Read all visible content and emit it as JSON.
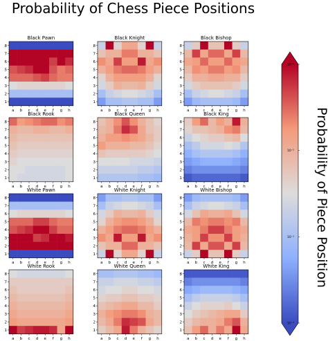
{
  "title": "Probability of Chess Piece Positions",
  "colorbar": {
    "label": "Probability of Piece Position",
    "scale": "log",
    "colormap": "coolwarm",
    "range": [
      0.0001,
      0.1
    ],
    "tick_labels": [
      "10⁻¹",
      "10⁻²",
      "10⁻³",
      "10⁻⁴"
    ],
    "extend": "both"
  },
  "chart_data": {
    "type": "heatmap",
    "x_tick_labels": [
      "a",
      "b",
      "c",
      "d",
      "e",
      "f",
      "g",
      "h"
    ],
    "y_tick_labels": [
      "8",
      "7",
      "6",
      "5",
      "4",
      "3",
      "2",
      "1"
    ],
    "value_scale": "log10 of probability, range -4 to -1",
    "panels": [
      {
        "title": "Black Pawn",
        "grid": [
          [
            -4,
            -4,
            -4,
            -4,
            -4,
            -4,
            -4,
            -4
          ],
          [
            -1,
            -1,
            -1,
            -1,
            -1,
            -1,
            -1,
            -1
          ],
          [
            -1,
            -1,
            -1,
            -1,
            -1,
            -1.3,
            -1,
            -1.2
          ],
          [
            -1.4,
            -1.3,
            -1.2,
            -1,
            -1,
            -1.4,
            -1.6,
            -1.5
          ],
          [
            -1.5,
            -1.5,
            -1.5,
            -1.4,
            -1.3,
            -1.5,
            -1.6,
            -1.6
          ],
          [
            -2.5,
            -2.4,
            -2.4,
            -2.4,
            -2.4,
            -2.4,
            -2.4,
            -2.5
          ],
          [
            -3,
            -3,
            -3,
            -3,
            -3,
            -3,
            -3,
            -3
          ],
          [
            -4,
            -4,
            -4,
            -4,
            -4,
            -4,
            -4,
            -4
          ]
        ]
      },
      {
        "title": "Black Knight",
        "grid": [
          [
            -2.7,
            -1,
            -2.4,
            -1.9,
            -1.9,
            -2.4,
            -1,
            -2.7
          ],
          [
            -2.2,
            -2,
            -2,
            -1.6,
            -1.6,
            -2,
            -2,
            -2.2
          ],
          [
            -1.7,
            -1.9,
            -1.3,
            -1.8,
            -1.8,
            -1.1,
            -1.9,
            -1.7
          ],
          [
            -2,
            -1.8,
            -1.6,
            -1.5,
            -1.5,
            -1.6,
            -1.8,
            -2
          ],
          [
            -2.4,
            -2,
            -1.8,
            -1.8,
            -1.8,
            -1.8,
            -2,
            -2.4
          ],
          [
            -2.6,
            -2.3,
            -2,
            -2.1,
            -2.1,
            -2,
            -2.3,
            -2.6
          ],
          [
            -3,
            -2.7,
            -2.6,
            -2.5,
            -2.5,
            -2.6,
            -2.7,
            -3
          ],
          [
            -3.4,
            -3,
            -3,
            -2.9,
            -2.9,
            -3,
            -3,
            -3.4
          ]
        ]
      },
      {
        "title": "Black Bishop",
        "grid": [
          [
            -2.7,
            -2.3,
            -1,
            -2.2,
            -2.2,
            -1,
            -2.3,
            -2.7
          ],
          [
            -2.1,
            -1.3,
            -1.9,
            -1.5,
            -1.5,
            -1.9,
            -1.3,
            -2.1
          ],
          [
            -1.9,
            -1.8,
            -1.5,
            -1.8,
            -1.8,
            -1.5,
            -1.8,
            -1.9
          ],
          [
            -2.1,
            -1.7,
            -1.8,
            -1.6,
            -1.6,
            -1.8,
            -1.7,
            -2.1
          ],
          [
            -2.3,
            -2,
            -2,
            -1.9,
            -1.9,
            -2,
            -2,
            -2.3
          ],
          [
            -2.6,
            -2.3,
            -2.2,
            -2.2,
            -2.2,
            -2.2,
            -2.3,
            -2.6
          ],
          [
            -3,
            -2.7,
            -2.6,
            -2.5,
            -2.5,
            -2.6,
            -2.7,
            -3
          ],
          [
            -3.4,
            -3.1,
            -3,
            -3,
            -3,
            -3,
            -3.1,
            -3.4
          ]
        ]
      },
      {
        "title": "Black Rook",
        "grid": [
          [
            -1.5,
            -1.8,
            -1.7,
            -1.6,
            -1.5,
            -1.5,
            -1.7,
            -1.6
          ],
          [
            -2,
            -2.1,
            -2.1,
            -2,
            -2,
            -2.1,
            -2.1,
            -2
          ],
          [
            -2.1,
            -2.2,
            -2.2,
            -2.2,
            -2.2,
            -2.2,
            -2.2,
            -2.2
          ],
          [
            -2.2,
            -2.3,
            -2.3,
            -2.3,
            -2.3,
            -2.3,
            -2.3,
            -2.3
          ],
          [
            -2.3,
            -2.4,
            -2.4,
            -2.4,
            -2.4,
            -2.4,
            -2.4,
            -2.4
          ],
          [
            -2.4,
            -2.5,
            -2.5,
            -2.5,
            -2.5,
            -2.5,
            -2.5,
            -2.5
          ],
          [
            -2.5,
            -2.5,
            -2.6,
            -2.6,
            -2.6,
            -2.6,
            -2.6,
            -2.5
          ],
          [
            -2.5,
            -2.6,
            -2.6,
            -2.6,
            -2.6,
            -2.6,
            -2.6,
            -2.5
          ]
        ]
      },
      {
        "title": "Black Queen",
        "grid": [
          [
            -2.2,
            -2,
            -1.7,
            -1.4,
            -1.7,
            -2,
            -2.2,
            -2.4
          ],
          [
            -2.1,
            -2,
            -1.6,
            -1.2,
            -1.4,
            -1.9,
            -2.2,
            -2.3
          ],
          [
            -2,
            -1.8,
            -1.8,
            -1.7,
            -1.8,
            -1.9,
            -2.1,
            -2.3
          ],
          [
            -1.8,
            -2,
            -2,
            -2,
            -2.1,
            -2.1,
            -2.2,
            -2.4
          ],
          [
            -2.2,
            -2.3,
            -2.3,
            -2.3,
            -2.3,
            -2.3,
            -2.4,
            -2.5
          ],
          [
            -2.5,
            -2.5,
            -2.5,
            -2.5,
            -2.6,
            -2.6,
            -2.6,
            -2.7
          ],
          [
            -2.7,
            -2.7,
            -2.7,
            -2.7,
            -2.7,
            -2.8,
            -2.8,
            -2.9
          ],
          [
            -2.9,
            -2.9,
            -2.9,
            -2.9,
            -2.9,
            -3,
            -3,
            -3.1
          ]
        ]
      },
      {
        "title": "Black King",
        "grid": [
          [
            -2.3,
            -1.8,
            -1.5,
            -2.1,
            -1.8,
            -2,
            -1.1,
            -2
          ],
          [
            -2.4,
            -2.2,
            -2.2,
            -2.1,
            -2,
            -1.7,
            -1.6,
            -2.1
          ],
          [
            -2.7,
            -2.5,
            -2.4,
            -2.3,
            -2.3,
            -2.2,
            -2.1,
            -2.5
          ],
          [
            -3,
            -2.8,
            -2.6,
            -2.6,
            -2.6,
            -2.5,
            -2.6,
            -2.9
          ],
          [
            -3.2,
            -3,
            -2.9,
            -2.9,
            -2.9,
            -2.9,
            -3,
            -3.2
          ],
          [
            -3.4,
            -3.3,
            -3.2,
            -3.2,
            -3.2,
            -3.2,
            -3.3,
            -3.4
          ],
          [
            -3.6,
            -3.5,
            -3.5,
            -3.5,
            -3.5,
            -3.5,
            -3.5,
            -3.6
          ],
          [
            -3.9,
            -3.8,
            -3.8,
            -3.8,
            -3.8,
            -3.8,
            -3.8,
            -3.9
          ]
        ]
      },
      {
        "title": "White Pawn",
        "grid": [
          [
            -4,
            -4,
            -4,
            -4,
            -4,
            -4,
            -4,
            -4
          ],
          [
            -3,
            -3,
            -3,
            -3,
            -3,
            -3,
            -3,
            -3
          ],
          [
            -2.5,
            -2.4,
            -2.4,
            -2.4,
            -2.4,
            -2.4,
            -2.4,
            -2.5
          ],
          [
            -1.5,
            -1.5,
            -1.5,
            -1.3,
            -1.3,
            -1.5,
            -1.6,
            -1.6
          ],
          [
            -1.4,
            -1.3,
            -1.2,
            -1,
            -1,
            -1.3,
            -1.5,
            -1.5
          ],
          [
            -1,
            -1,
            -1,
            -1.3,
            -1.2,
            -1,
            -1,
            -1.1
          ],
          [
            -1,
            -1,
            -1,
            -1,
            -1,
            -1,
            -1,
            -1
          ],
          [
            -4,
            -4,
            -4,
            -4,
            -4,
            -4,
            -4,
            -4
          ]
        ]
      },
      {
        "title": "White Knight",
        "grid": [
          [
            -3.4,
            -3,
            -3,
            -2.9,
            -2.9,
            -3,
            -3,
            -3.4
          ],
          [
            -3,
            -2.7,
            -2.6,
            -2.5,
            -2.5,
            -2.6,
            -2.7,
            -3
          ],
          [
            -2.6,
            -2.3,
            -2,
            -2.1,
            -2.1,
            -2,
            -2.3,
            -2.6
          ],
          [
            -2.4,
            -2,
            -1.8,
            -1.7,
            -1.7,
            -1.8,
            -2,
            -2.4
          ],
          [
            -2,
            -1.8,
            -1.6,
            -1.5,
            -1.5,
            -1.6,
            -1.8,
            -2
          ],
          [
            -1.7,
            -1.9,
            -1.1,
            -1.8,
            -1.8,
            -1.1,
            -1.9,
            -1.7
          ],
          [
            -2.2,
            -2,
            -2,
            -1.5,
            -1.5,
            -2,
            -2,
            -2.2
          ],
          [
            -2.7,
            -1,
            -2.4,
            -1.9,
            -1.9,
            -2.4,
            -1,
            -2.7
          ]
        ]
      },
      {
        "title": "White Bishop",
        "grid": [
          [
            -3.4,
            -3.1,
            -3,
            -3,
            -3,
            -3,
            -3.1,
            -3.4
          ],
          [
            -3,
            -2.7,
            -2.6,
            -2.5,
            -2.5,
            -2.6,
            -2.7,
            -3
          ],
          [
            -2.6,
            -2.2,
            -1.9,
            -2,
            -2,
            -1.9,
            -2.2,
            -2.6
          ],
          [
            -2.1,
            -1.6,
            -1.7,
            -1.6,
            -1.6,
            -1.7,
            -1.6,
            -2.1
          ],
          [
            -1.9,
            -1.8,
            -1.6,
            -1.3,
            -1.3,
            -1.6,
            -1.8,
            -1.9
          ],
          [
            -2,
            -1.8,
            -1.3,
            -1.7,
            -1.7,
            -1.3,
            -1.8,
            -2
          ],
          [
            -2.1,
            -1.3,
            -1.9,
            -1.4,
            -1.4,
            -1.9,
            -1.3,
            -2.1
          ],
          [
            -2.7,
            -2.3,
            -1,
            -2.2,
            -2.2,
            -1,
            -2.3,
            -2.7
          ]
        ]
      },
      {
        "title": "White Rook",
        "grid": [
          [
            -2.5,
            -2.6,
            -2.6,
            -2.6,
            -2.6,
            -2.6,
            -2.6,
            -2.5
          ],
          [
            -2.3,
            -2.3,
            -2.3,
            -2.3,
            -2.3,
            -2.3,
            -2.3,
            -2.3
          ],
          [
            -2.2,
            -2.3,
            -2.3,
            -2.3,
            -2.3,
            -2.3,
            -2.3,
            -2.2
          ],
          [
            -2.1,
            -2.2,
            -2.2,
            -2.2,
            -2.2,
            -2.2,
            -2.2,
            -2.1
          ],
          [
            -2,
            -2.1,
            -2.1,
            -2.1,
            -2.1,
            -2.1,
            -2.1,
            -2
          ],
          [
            -1.9,
            -2,
            -2,
            -2,
            -2,
            -2,
            -2,
            -1.9
          ],
          [
            -1.8,
            -1.9,
            -1.9,
            -1.9,
            -1.9,
            -1.9,
            -1.9,
            -1.8
          ],
          [
            -1,
            -1.3,
            -1.2,
            -1.1,
            -1.1,
            -1.2,
            -1.9,
            -1
          ]
        ]
      },
      {
        "title": "White Queen",
        "grid": [
          [
            -3,
            -3,
            -2.9,
            -2.9,
            -2.9,
            -3,
            -3,
            -3.1
          ],
          [
            -2.7,
            -2.7,
            -2.6,
            -2.6,
            -2.6,
            -2.7,
            -2.7,
            -2.8
          ],
          [
            -2.6,
            -2.5,
            -2.5,
            -2.4,
            -2.4,
            -2.5,
            -2.5,
            -2.6
          ],
          [
            -2.4,
            -2.3,
            -2.3,
            -2.2,
            -2.2,
            -2.3,
            -2.3,
            -2.4
          ],
          [
            -2.2,
            -2.1,
            -2,
            -1.9,
            -1.9,
            -2.1,
            -2.1,
            -2.3
          ],
          [
            -2,
            -1.8,
            -1.7,
            -1.6,
            -1.6,
            -1.7,
            -2,
            -2.1
          ],
          [
            -2.1,
            -1.9,
            -1.6,
            -1.2,
            -1.3,
            -1.4,
            -1.9,
            -2.1
          ],
          [
            -2.3,
            -2.1,
            -1.9,
            -1.1,
            -1.6,
            -2,
            -2.2,
            -2.4
          ]
        ]
      },
      {
        "title": "White King",
        "grid": [
          [
            -3.9,
            -3.9,
            -3.9,
            -3.9,
            -3.9,
            -3.9,
            -3.9,
            -3.9
          ],
          [
            -3.6,
            -3.5,
            -3.5,
            -3.5,
            -3.5,
            -3.5,
            -3.5,
            -3.6
          ],
          [
            -3.3,
            -3.2,
            -3.1,
            -3.1,
            -3.1,
            -3.1,
            -3.2,
            -3.3
          ],
          [
            -3,
            -2.8,
            -2.7,
            -2.7,
            -2.7,
            -2.7,
            -2.8,
            -3
          ],
          [
            -2.7,
            -2.5,
            -2.4,
            -2.4,
            -2.4,
            -2.3,
            -2.5,
            -2.7
          ],
          [
            -2.5,
            -2.3,
            -2.2,
            -2.1,
            -2,
            -1.9,
            -1.9,
            -2.3
          ],
          [
            -2.3,
            -2.1,
            -2,
            -2,
            -1.9,
            -1.6,
            -1.4,
            -2
          ],
          [
            -2.2,
            -1.8,
            -1.5,
            -2,
            -1.6,
            -1.9,
            -1,
            -1.9
          ]
        ]
      }
    ]
  }
}
